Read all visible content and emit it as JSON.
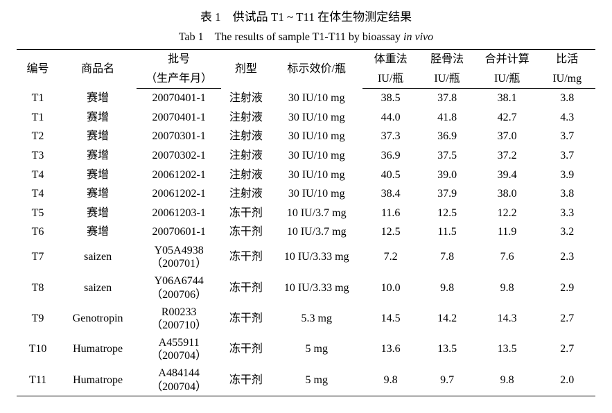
{
  "title_cn": "表 1　供试品 T1 ~ T11 在体生物测定结果",
  "title_en_prefix": "Tab 1　The results of sample T1-T11 by bioassay ",
  "title_en_italic": "in vivo",
  "table": {
    "type": "table",
    "background_color": "#ffffff",
    "border_color": "#000000",
    "header_top": [
      "编号",
      "商品名",
      "批号",
      "剂型",
      "标示效价/瓶",
      "体重法",
      "胫骨法",
      "合并计算",
      "比活"
    ],
    "header_bot": [
      "",
      "",
      "（生产年月）",
      "",
      "",
      "IU/瓶",
      "IU/瓶",
      "IU/瓶",
      "IU/mg"
    ],
    "rows": [
      {
        "id": "T1",
        "name": "赛增",
        "batch": "20070401-1",
        "form": "注射液",
        "label": "30 IU/10 mg",
        "bw": "38.5",
        "tb": "37.8",
        "comb": "38.1",
        "spec": "3.8"
      },
      {
        "id": "T1",
        "name": "赛增",
        "batch": "20070401-1",
        "form": "注射液",
        "label": "30 IU/10 mg",
        "bw": "44.0",
        "tb": "41.8",
        "comb": "42.7",
        "spec": "4.3"
      },
      {
        "id": "T2",
        "name": "赛增",
        "batch": "20070301-1",
        "form": "注射液",
        "label": "30 IU/10 mg",
        "bw": "37.3",
        "tb": "36.9",
        "comb": "37.0",
        "spec": "3.7"
      },
      {
        "id": "T3",
        "name": "赛增",
        "batch": "20070302-1",
        "form": "注射液",
        "label": "30 IU/10 mg",
        "bw": "36.9",
        "tb": "37.5",
        "comb": "37.2",
        "spec": "3.7"
      },
      {
        "id": "T4",
        "name": "赛增",
        "batch": "20061202-1",
        "form": "注射液",
        "label": "30 IU/10 mg",
        "bw": "40.5",
        "tb": "39.0",
        "comb": "39.4",
        "spec": "3.9"
      },
      {
        "id": "T4",
        "name": "赛增",
        "batch": "20061202-1",
        "form": "注射液",
        "label": "30 IU/10 mg",
        "bw": "38.4",
        "tb": "37.9",
        "comb": "38.0",
        "spec": "3.8"
      },
      {
        "id": "T5",
        "name": "赛增",
        "batch": "20061203-1",
        "form": "冻干剂",
        "label": "10 IU/3.7 mg",
        "bw": "11.6",
        "tb": "12.5",
        "comb": "12.2",
        "spec": "3.3"
      },
      {
        "id": "T6",
        "name": "赛增",
        "batch": "20070601-1",
        "form": "冻干剂",
        "label": "10 IU/3.7 mg",
        "bw": "12.5",
        "tb": "11.5",
        "comb": "11.9",
        "spec": "3.2"
      },
      {
        "id": "T7",
        "name": "saizen",
        "batch_l1": "Y05A4938",
        "batch_l2": "（200701）",
        "form": "冻干剂",
        "label": "10 IU/3.33 mg",
        "bw": "7.2",
        "tb": "7.8",
        "comb": "7.6",
        "spec": "2.3"
      },
      {
        "id": "T8",
        "name": "saizen",
        "batch_l1": "Y06A6744",
        "batch_l2": "（200706）",
        "form": "冻干剂",
        "label": "10 IU/3.33 mg",
        "bw": "10.0",
        "tb": "9.8",
        "comb": "9.8",
        "spec": "2.9"
      },
      {
        "id": "T9",
        "name": "Genotropin",
        "batch_l1": "R00233",
        "batch_l2": "（200710）",
        "form": "冻干剂",
        "label": "5.3 mg",
        "bw": "14.5",
        "tb": "14.2",
        "comb": "14.3",
        "spec": "2.7"
      },
      {
        "id": "T10",
        "name": "Humatrope",
        "batch_l1": "A455911",
        "batch_l2": "（200704）",
        "form": "冻干剂",
        "label": "5 mg",
        "bw": "13.6",
        "tb": "13.5",
        "comb": "13.5",
        "spec": "2.7"
      },
      {
        "id": "T11",
        "name": "Humatrope",
        "batch_l1": "A484144",
        "batch_l2": "（200704）",
        "form": "冻干剂",
        "label": "5 mg",
        "bw": "9.8",
        "tb": "9.7",
        "comb": "9.8",
        "spec": "2.0"
      }
    ]
  }
}
